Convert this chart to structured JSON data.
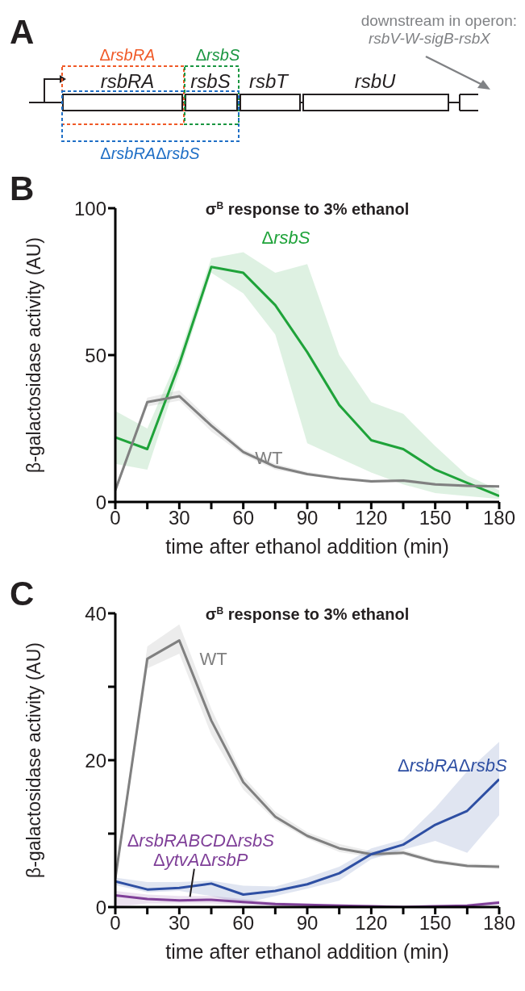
{
  "chart_data": [
    {
      "type": "other",
      "annotations": [
        "A",
        "ΔrsbRA",
        "ΔrsbS",
        "rsbRA",
        "rsbS",
        "rsbT",
        "rsbU",
        "ΔrsbRAΔrsbS",
        "downstream in operon:",
        "rsbV-W-sigB-rsbX"
      ]
    },
    {
      "type": "line",
      "title": "σ$^{B}$ response to 3% ethanol",
      "xlabel": "time after ethanol addition (min)",
      "ylabel": "β-galactosidase activity (AU)",
      "annotations": [
        "B"
      ],
      "x": [
        0,
        15,
        30,
        45,
        60,
        75,
        90,
        105,
        120,
        135,
        150,
        165,
        180
      ],
      "xlim": [
        0,
        180
      ],
      "xticks": [
        0,
        {
          "value": 15,
          "label": null
        },
        30,
        {
          "value": 45,
          "label": null
        },
        60,
        {
          "value": 75,
          "label": null
        },
        90,
        {
          "value": 105,
          "label": null
        },
        120,
        {
          "value": 135,
          "label": null
        },
        150,
        {
          "value": 165,
          "label": null
        },
        180
      ],
      "ylim": [
        0,
        100
      ],
      "yticks": [
        0,
        50,
        100
      ],
      "series": [
        {
          "name": "ΔrsbS",
          "color": "#1fa33a",
          "values": [
            22,
            18,
            47,
            80,
            78,
            67,
            51,
            33,
            21,
            18,
            11,
            6.5,
            2
          ],
          "lower": [
            13,
            11,
            44,
            78,
            71,
            57,
            20,
            15,
            10,
            6,
            3,
            2,
            1
          ],
          "upper": [
            31,
            25,
            50,
            83,
            85,
            78,
            81,
            50,
            34,
            30,
            19,
            9,
            4
          ]
        },
        {
          "name": "WT",
          "color": "#808080",
          "values": [
            4,
            34,
            36,
            26,
            17,
            12,
            9.5,
            8,
            7,
            7.3,
            6,
            5.5,
            5.3
          ],
          "lower": [
            3,
            32.5,
            34.5,
            24,
            16,
            11,
            9,
            7.5,
            6.5,
            6.8,
            5.5,
            5,
            4.8
          ],
          "upper": [
            5,
            35.5,
            38,
            27.5,
            18,
            13,
            10.2,
            8.6,
            7.6,
            7.8,
            6.5,
            6,
            5.8
          ]
        }
      ]
    },
    {
      "type": "line",
      "title": "σ$^{B}$ response to 3% ethanol",
      "xlabel": "time after ethanol addition (min)",
      "ylabel": "β-galactosidase activity (AU)",
      "annotations": [
        "C"
      ],
      "x": [
        0,
        15,
        30,
        45,
        60,
        75,
        90,
        105,
        120,
        135,
        150,
        165,
        180
      ],
      "xlim": [
        0,
        180
      ],
      "xticks": [
        0,
        {
          "value": 15,
          "label": null
        },
        30,
        {
          "value": 45,
          "label": null
        },
        60,
        {
          "value": 75,
          "label": null
        },
        90,
        {
          "value": 105,
          "label": null
        },
        120,
        {
          "value": 135,
          "label": null
        },
        150,
        {
          "value": 165,
          "label": null
        },
        180
      ],
      "ylim": [
        0,
        40
      ],
      "yticks": [
        0,
        {
          "value": 10,
          "label": null
        },
        20,
        {
          "value": 30,
          "label": null
        },
        40
      ],
      "series": [
        {
          "name": "WT",
          "color": "#808080",
          "values": [
            3.9,
            33.8,
            36.3,
            25.4,
            17,
            12.3,
            9.7,
            8,
            7.2,
            7.4,
            6.2,
            5.6,
            5.5
          ],
          "lower": [
            3.5,
            32.5,
            34.5,
            23.5,
            16,
            11.8,
            9.3,
            7.5,
            6.8,
            7.1,
            5.9,
            5.4,
            5.2
          ],
          "upper": [
            4.5,
            35.5,
            38.5,
            27,
            17.8,
            13,
            10.2,
            8.6,
            7.6,
            7.8,
            6.5,
            5.9,
            5.8
          ]
        },
        {
          "name": "ΔrsbRAΔrsbS",
          "color": "#2e4fa3",
          "values": [
            3.5,
            2.4,
            2.6,
            3.2,
            1.7,
            2.2,
            3.1,
            4.6,
            7.2,
            8.5,
            11.2,
            13.1,
            17.4
          ],
          "lower": [
            3,
            2,
            2.2,
            1.5,
            0.5,
            1.5,
            2.5,
            3.6,
            6.5,
            7.8,
            9,
            7.4,
            12.5
          ],
          "upper": [
            4,
            3.4,
            3.4,
            3.6,
            2.9,
            2.8,
            4,
            5.5,
            8,
            9.2,
            13.5,
            18.5,
            22.5
          ]
        },
        {
          "name": "ΔrsbRABCDΔrsbS ΔytvAΔrsbP",
          "color": "#7f3f98",
          "values": [
            1.6,
            1.1,
            0.9,
            1,
            0.7,
            0.4,
            0.3,
            0.2,
            0.1,
            0,
            0.1,
            0.2,
            0.6
          ],
          "lower": [
            0,
            0.5,
            0.5,
            0.5,
            0.3,
            0.2,
            0.1,
            0.1,
            0,
            0,
            0,
            0,
            0.3
          ],
          "upper": [
            2.2,
            1.7,
            1.5,
            1.5,
            1.1,
            0.7,
            0.5,
            0.4,
            0.3,
            0.2,
            0.3,
            0.4,
            0.9
          ]
        }
      ]
    }
  ]
}
